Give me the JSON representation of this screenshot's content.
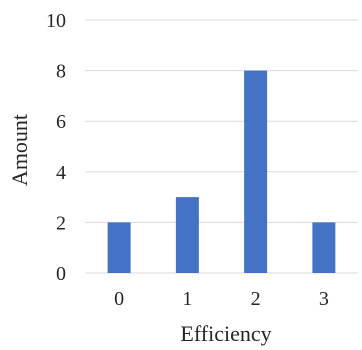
{
  "chart_data": {
    "type": "bar",
    "title": "",
    "xlabel": "Efficiency",
    "ylabel": "Amount",
    "categories": [
      "0",
      "1",
      "2",
      "3"
    ],
    "values": [
      2,
      3,
      8,
      2
    ],
    "ylim": [
      0,
      10
    ],
    "yticks": [
      "0",
      "2",
      "4",
      "6",
      "8",
      "10"
    ],
    "grid": true,
    "legend": "none",
    "bar_color": "#4472C4"
  }
}
